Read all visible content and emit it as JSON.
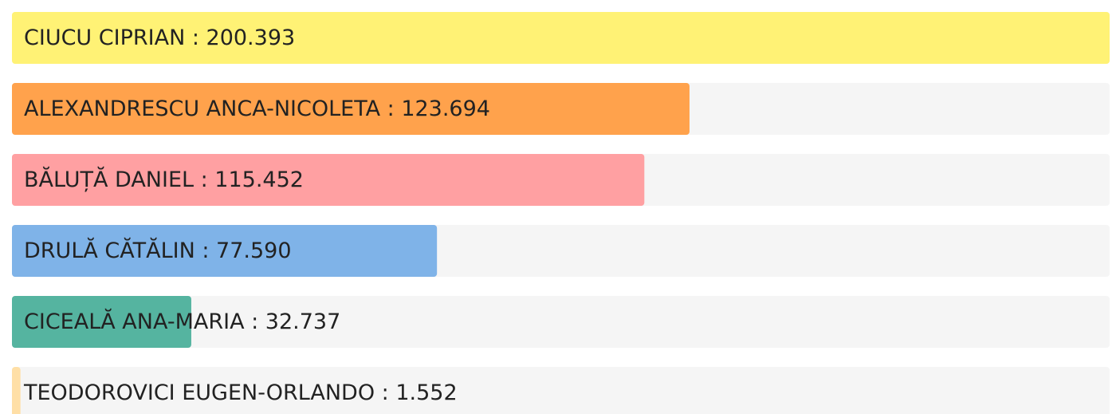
{
  "chart_data": {
    "type": "hbar",
    "categories": [
      "CIUCU  CIPRIAN : 200.393",
      "ALEXANDRESCU  ANCA-NICOLETA : 123.694",
      "BĂLUȚĂ  DANIEL : 115.452",
      "DRULĂ  CĂTĂLIN : 77.590",
      "CICEALĂ  ANA-MARIA : 32.737",
      "TEODOROVICI  EUGEN-ORLANDO : 1.552"
    ],
    "values": [
      200393,
      123694,
      115452,
      77590,
      32737,
      1552
    ],
    "colors": [
      "#fff275",
      "#ffa24c",
      "#ffa0a2",
      "#7fb3e8",
      "#55b4a0",
      "#ffdfa6"
    ],
    "xlim": [
      0,
      200393
    ]
  }
}
